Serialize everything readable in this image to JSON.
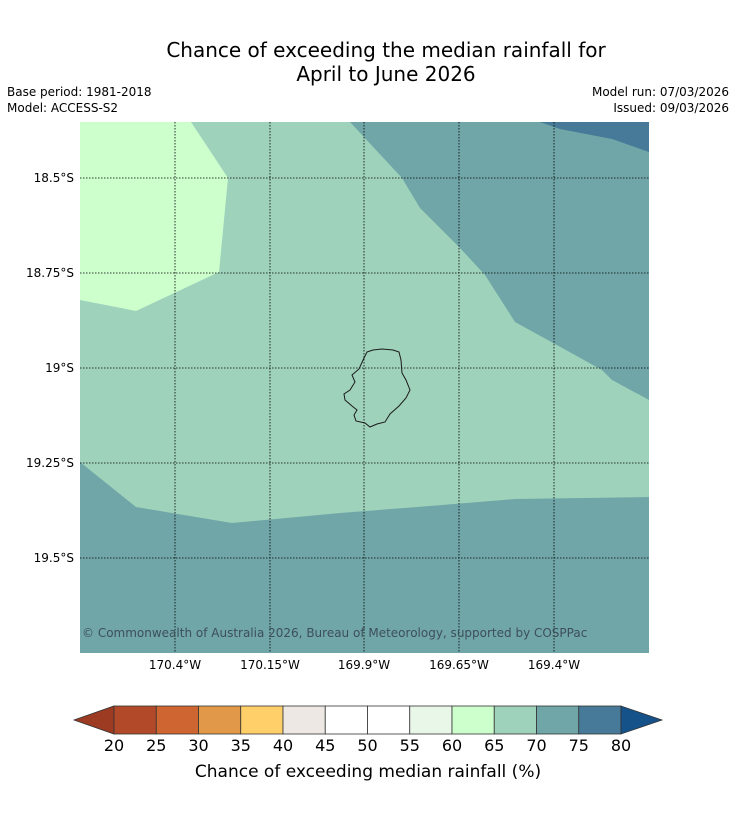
{
  "title": {
    "line1": "Chance of exceeding the median rainfall for",
    "line2": "April to June 2026"
  },
  "meta": {
    "base_period": "Base period: 1981-2018",
    "model": "Model: ACCESS-S2",
    "model_run": "Model run: 07/03/2026",
    "issued": "Issued: 09/03/2026"
  },
  "map": {
    "lat_labels": [
      "18.5°S",
      "18.75°S",
      "19°S",
      "19.25°S",
      "19.5°S"
    ],
    "lon_labels": [
      "170.4°W",
      "170.15°W",
      "169.9°W",
      "169.65°W",
      "169.4°W"
    ],
    "copyright": "© Commonwealth of Australia 2026, Bureau of Meteorology, supported by COSPPac",
    "region_colors": {
      "60-65": "#ccffcc",
      "65-70": "#9fd2bb",
      "70-75": "#70a6a7",
      "75-80": "#467a98"
    }
  },
  "colorbar": {
    "ticks": [
      "20",
      "25",
      "30",
      "35",
      "40",
      "45",
      "50",
      "55",
      "60",
      "65",
      "70",
      "75",
      "80"
    ],
    "colors": [
      "#b24a29",
      "#cf6632",
      "#e19949",
      "#ffd06a",
      "#ede8e4",
      "#ffffff",
      "#ffffff",
      "#e9f7e9",
      "#ccffcc",
      "#9fd2bb",
      "#70a6a7",
      "#467a98"
    ],
    "under_color": "#9c3a22",
    "over_color": "#155289",
    "label": "Chance of exceeding median rainfall (%)"
  }
}
